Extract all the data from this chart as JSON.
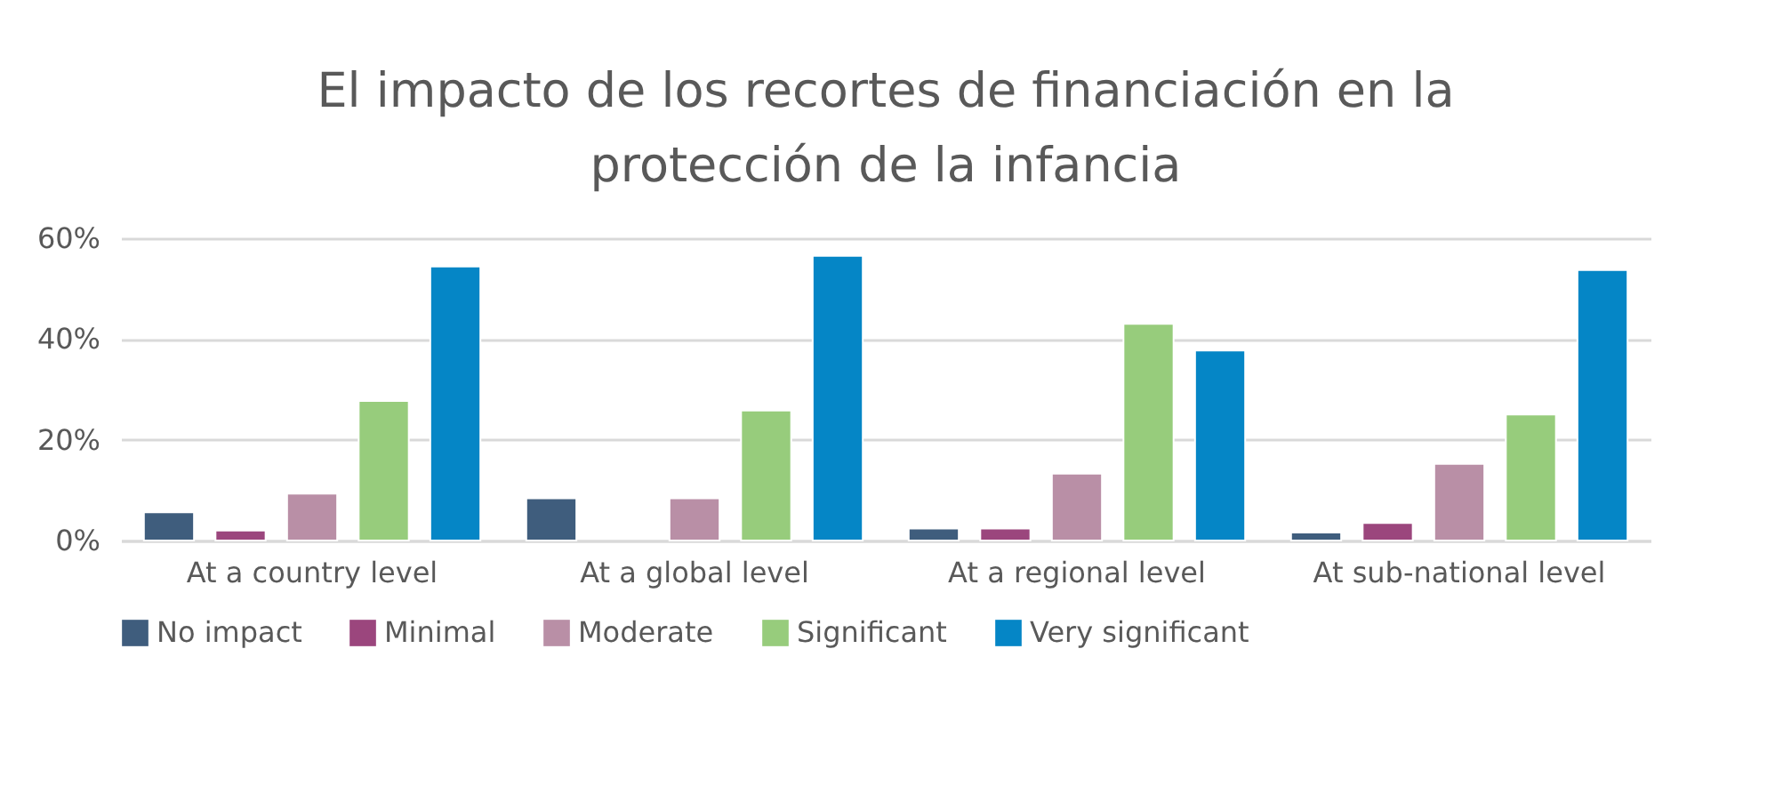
{
  "chart_data": {
    "type": "bar",
    "title": "El impacto de los recortes de financiación en la protección de la infancia",
    "categories": [
      "At a country level",
      "At a global level",
      "At a regional level",
      "At sub-national level"
    ],
    "series": [
      {
        "name": "No impact",
        "color": "#3f5d7d",
        "values": [
          5.6,
          8.4,
          2.4,
          1.6
        ]
      },
      {
        "name": "Minimal",
        "color": "#9b467d",
        "values": [
          2.0,
          null,
          2.4,
          3.5
        ]
      },
      {
        "name": "Moderate",
        "color": "#b98fa6",
        "values": [
          9.3,
          8.4,
          13.3,
          15.2
        ]
      },
      {
        "name": "Significant",
        "color": "#97cc7c",
        "values": [
          27.7,
          25.8,
          43.0,
          25.0
        ]
      },
      {
        "name": "Very significant",
        "color": "#0586c6",
        "values": [
          54.4,
          56.5,
          37.7,
          53.7
        ]
      }
    ],
    "ylim": [
      0,
      60
    ],
    "yticks": [
      {
        "value": 0,
        "label": "0%"
      },
      {
        "value": 20,
        "label": "20%"
      },
      {
        "value": 40,
        "label": "40%"
      },
      {
        "value": 60,
        "label": "60%"
      }
    ],
    "grid": "y",
    "legend": "bottom"
  }
}
